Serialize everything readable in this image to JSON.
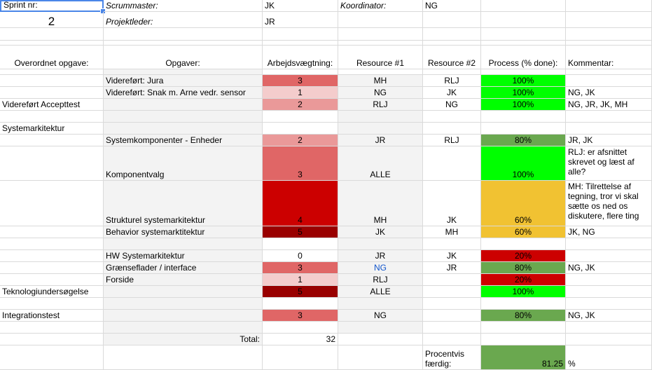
{
  "colors": {
    "grid": "#dadada",
    "header_gray": "#f3f3f3",
    "weight_1": "#f4cccc",
    "weight_2": "#ea9999",
    "weight_3": "#e06666",
    "weight_4": "#cc0000",
    "weight_5": "#990000",
    "progress_100": "#00ff00",
    "progress_80": "#6aa84f",
    "progress_60": "#f1c232",
    "progress_20": "#cc0000",
    "selection": "#4a86e8",
    "link_blue": "#1155cc"
  },
  "header": {
    "sprint_label": "Sprint nr:",
    "sprint_value": "2",
    "scrummaster_label": "Scrummaster:",
    "scrummaster_value": "JK",
    "koordinator_label": "Koordinator:",
    "koordinator_value": "NG",
    "projektleder_label": "Projektleder:",
    "projektleder_value": "JR"
  },
  "columns": {
    "overordnet": "Overordnet opgave:",
    "opgaver": "Opgaver:",
    "vaegt": "Arbejdsvægtning:",
    "res1": "Resource #1",
    "res2": "Resource #2",
    "process": "Process (% done):",
    "kommentar": "Kommentar:"
  },
  "rows": [
    {
      "overordnet": "",
      "opgave": "Videreført: Jura",
      "vaegt": "3",
      "res1": "MH",
      "res2": "RLJ",
      "process": "100%",
      "kommentar": ""
    },
    {
      "overordnet": "",
      "opgave": "Videreført: Snak m. Arne vedr. sensor",
      "vaegt": "1",
      "res1": "NG",
      "res2": "JK",
      "process": "100%",
      "kommentar": "NG, JK"
    },
    {
      "overordnet": "Videreført Accepttest",
      "opgave": "",
      "vaegt": "2",
      "res1": "RLJ",
      "res2": "NG",
      "process": "100%",
      "kommentar": "NG, JR, JK, MH"
    },
    {
      "overordnet": "Systemarkitektur",
      "opgave": "",
      "vaegt": "",
      "res1": "",
      "res2": "",
      "process": "",
      "kommentar": ""
    },
    {
      "overordnet": "",
      "opgave": "Systemkomponenter - Enheder",
      "vaegt": "2",
      "res1": "JR",
      "res2": "RLJ",
      "process": "80%",
      "kommentar": "JR, JK"
    },
    {
      "overordnet": "",
      "opgave": "Komponentvalg",
      "vaegt": "3",
      "res1": "ALLE",
      "res2": "",
      "process": "100%",
      "kommentar": "RLJ: er afsnittet skrevet og læst af alle?"
    },
    {
      "overordnet": "",
      "opgave": "Strukturel systemarkitektur",
      "vaegt": "4",
      "res1": "MH",
      "res2": "JK",
      "process": "60%",
      "kommentar": "MH: Tilrettelse af tegning, tror vi skal sætte os ned os diskutere, flere ting"
    },
    {
      "overordnet": "",
      "opgave": "Behavior systemarktitektur",
      "vaegt": "5",
      "res1": "JK",
      "res2": "MH",
      "process": "60%",
      "kommentar": "JK, NG"
    },
    {
      "overordnet": "",
      "opgave": "HW Systemarkitektur",
      "vaegt": "0",
      "res1": "JR",
      "res2": "JK",
      "process": "20%",
      "kommentar": ""
    },
    {
      "overordnet": "",
      "opgave": "Grænseflader / interface",
      "vaegt": "3",
      "res1": "NG",
      "res2": "JR",
      "process": "80%",
      "kommentar": "NG, JK"
    },
    {
      "overordnet": "",
      "opgave": "Forside",
      "vaegt": "1",
      "res1": "RLJ",
      "res2": "",
      "process": "20%",
      "kommentar": ""
    },
    {
      "overordnet": "Teknologiundersøgelse",
      "opgave": "",
      "vaegt": "5",
      "res1": "ALLE",
      "res2": "",
      "process": "100%",
      "kommentar": ""
    },
    {
      "overordnet": "Integrationstest",
      "opgave": "",
      "vaegt": "3",
      "res1": "NG",
      "res2": "",
      "process": "80%",
      "kommentar": "NG, JK"
    }
  ],
  "footer": {
    "total_label": "Total:",
    "total_value": "32",
    "procent_label": "Procentvis færdig:",
    "procent_value": "81.25",
    "procent_unit": "%"
  }
}
